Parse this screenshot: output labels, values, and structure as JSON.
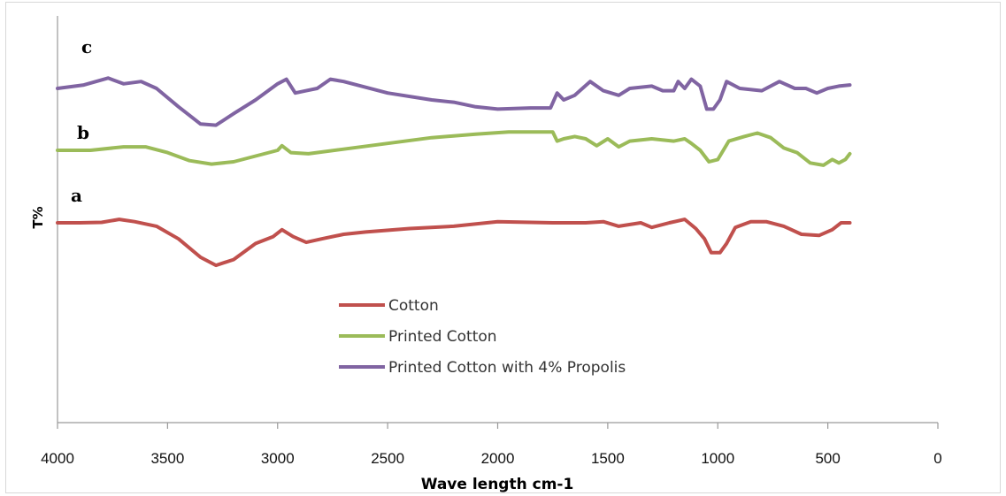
{
  "chart_data": {
    "type": "line",
    "xlabel": "Wave length cm-1",
    "ylabel": "T%",
    "xlim": [
      4000,
      0
    ],
    "x_reversed": true,
    "x_ticks": [
      "4000",
      "3500",
      "3000",
      "2500",
      "2000",
      "1500",
      "1000",
      "500",
      "0"
    ],
    "grid": false,
    "legend_position": "center",
    "series": [
      {
        "name": "Cotton",
        "label": "a",
        "color": "#c0504d",
        "points": [
          [
            4000,
            0
          ],
          [
            3900,
            0
          ],
          [
            3800,
            0.2
          ],
          [
            3720,
            1.5
          ],
          [
            3650,
            0.5
          ],
          [
            3550,
            -1.5
          ],
          [
            3450,
            -7
          ],
          [
            3350,
            -15
          ],
          [
            3280,
            -18.5
          ],
          [
            3200,
            -16
          ],
          [
            3100,
            -9
          ],
          [
            3020,
            -6
          ],
          [
            2980,
            -3
          ],
          [
            2930,
            -6
          ],
          [
            2870,
            -8.5
          ],
          [
            2800,
            -7
          ],
          [
            2700,
            -5
          ],
          [
            2600,
            -4
          ],
          [
            2400,
            -2.5
          ],
          [
            2200,
            -1.5
          ],
          [
            2000,
            0.5
          ],
          [
            1750,
            0
          ],
          [
            1600,
            0
          ],
          [
            1520,
            0.5
          ],
          [
            1450,
            -1.5
          ],
          [
            1350,
            0
          ],
          [
            1300,
            -2
          ],
          [
            1220,
            0
          ],
          [
            1150,
            1.5
          ],
          [
            1100,
            -2.5
          ],
          [
            1060,
            -7
          ],
          [
            1030,
            -13
          ],
          [
            990,
            -13
          ],
          [
            960,
            -9
          ],
          [
            920,
            -2
          ],
          [
            850,
            0.5
          ],
          [
            780,
            0.5
          ],
          [
            700,
            -1.5
          ],
          [
            620,
            -5
          ],
          [
            540,
            -5.5
          ],
          [
            480,
            -3
          ],
          [
            440,
            0
          ],
          [
            400,
            0
          ]
        ]
      },
      {
        "name": "Printed Cotton",
        "label": "b",
        "color": "#9bbb59",
        "points": [
          [
            4000,
            0
          ],
          [
            3850,
            0
          ],
          [
            3700,
            1.5
          ],
          [
            3600,
            1.5
          ],
          [
            3500,
            -1
          ],
          [
            3400,
            -4.5
          ],
          [
            3300,
            -6
          ],
          [
            3200,
            -5
          ],
          [
            3100,
            -2.5
          ],
          [
            3000,
            0
          ],
          [
            2980,
            2
          ],
          [
            2940,
            -1
          ],
          [
            2860,
            -1.5
          ],
          [
            2700,
            0.5
          ],
          [
            2500,
            3
          ],
          [
            2300,
            5.5
          ],
          [
            2100,
            7
          ],
          [
            1950,
            8
          ],
          [
            1800,
            8
          ],
          [
            1750,
            8
          ],
          [
            1730,
            4
          ],
          [
            1700,
            5
          ],
          [
            1650,
            6
          ],
          [
            1600,
            5
          ],
          [
            1550,
            2
          ],
          [
            1500,
            5
          ],
          [
            1450,
            1.5
          ],
          [
            1400,
            4
          ],
          [
            1300,
            5
          ],
          [
            1200,
            4
          ],
          [
            1150,
            5
          ],
          [
            1120,
            3
          ],
          [
            1080,
            0
          ],
          [
            1040,
            -5
          ],
          [
            1000,
            -4
          ],
          [
            950,
            4
          ],
          [
            880,
            6
          ],
          [
            820,
            7.5
          ],
          [
            760,
            5.5
          ],
          [
            700,
            1
          ],
          [
            640,
            -1
          ],
          [
            580,
            -5.5
          ],
          [
            520,
            -6.5
          ],
          [
            480,
            -4
          ],
          [
            450,
            -5.5
          ],
          [
            420,
            -4
          ],
          [
            400,
            -1.5
          ]
        ]
      },
      {
        "name": "Printed Cotton with 4% Propolis",
        "label": "c",
        "color": "#8064a2",
        "points": [
          [
            4000,
            0
          ],
          [
            3880,
            1.5
          ],
          [
            3770,
            4.5
          ],
          [
            3700,
            2
          ],
          [
            3620,
            3
          ],
          [
            3550,
            0
          ],
          [
            3450,
            -8
          ],
          [
            3350,
            -15.5
          ],
          [
            3280,
            -16
          ],
          [
            3200,
            -11
          ],
          [
            3100,
            -5
          ],
          [
            3000,
            2
          ],
          [
            2960,
            4
          ],
          [
            2920,
            -2
          ],
          [
            2870,
            -1
          ],
          [
            2820,
            0
          ],
          [
            2760,
            4
          ],
          [
            2700,
            3
          ],
          [
            2500,
            -2
          ],
          [
            2300,
            -5
          ],
          [
            2200,
            -6
          ],
          [
            2100,
            -8
          ],
          [
            2000,
            -9
          ],
          [
            1850,
            -8.5
          ],
          [
            1760,
            -8.5
          ],
          [
            1730,
            -2
          ],
          [
            1700,
            -5
          ],
          [
            1650,
            -3
          ],
          [
            1580,
            3
          ],
          [
            1520,
            -1
          ],
          [
            1450,
            -3
          ],
          [
            1400,
            0
          ],
          [
            1300,
            1
          ],
          [
            1250,
            -1
          ],
          [
            1200,
            -1
          ],
          [
            1180,
            3
          ],
          [
            1150,
            0
          ],
          [
            1120,
            4
          ],
          [
            1080,
            1
          ],
          [
            1050,
            -9
          ],
          [
            1020,
            -9
          ],
          [
            990,
            -5
          ],
          [
            960,
            3
          ],
          [
            900,
            0
          ],
          [
            800,
            -1
          ],
          [
            720,
            3
          ],
          [
            650,
            0
          ],
          [
            600,
            0
          ],
          [
            550,
            -2
          ],
          [
            500,
            0
          ],
          [
            450,
            1
          ],
          [
            400,
            1.5
          ]
        ]
      }
    ]
  }
}
